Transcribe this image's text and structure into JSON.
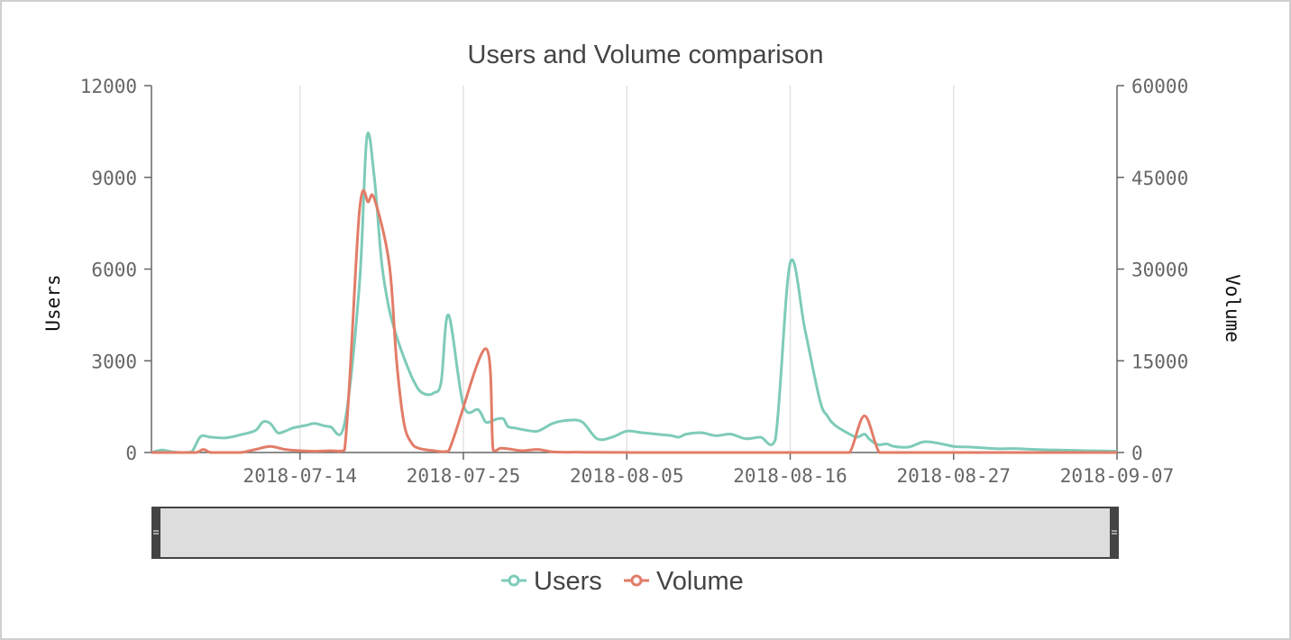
{
  "chart_data": {
    "type": "line",
    "title": "Users and Volume comparison",
    "ylabel": "Users",
    "y2label": "Volume",
    "ylim": [
      0,
      12000
    ],
    "y2lim": [
      0,
      60000
    ],
    "yticks": [
      "0",
      "3000",
      "6000",
      "9000",
      "12000"
    ],
    "y2ticks": [
      "0",
      "15000",
      "30000",
      "45000",
      "60000"
    ],
    "xticks": [
      "2018-07-14",
      "2018-07-25",
      "2018-08-05",
      "2018-08-16",
      "2018-08-27",
      "2018-09-07"
    ],
    "xlim_days": [
      0,
      65
    ],
    "xtick_days": [
      10,
      21,
      32,
      43,
      54,
      65
    ],
    "grid": "vertical",
    "series": [
      {
        "name": "Users",
        "axis": "left",
        "color": "#7ecbb9",
        "x": [
          0,
          0.7,
          1.3,
          2,
          2.7,
          3.3,
          4,
          5,
          6,
          7,
          7.5,
          8,
          8.5,
          9,
          9.5,
          10,
          10.5,
          11,
          12,
          13,
          14,
          14.5,
          15,
          15.5,
          16,
          16.5,
          17,
          17.5,
          18,
          18.5,
          19,
          19.5,
          20,
          21,
          22,
          22.5,
          23,
          23.3,
          23.7,
          24,
          24.5,
          25,
          26,
          27,
          28,
          29,
          30,
          31,
          32,
          33,
          34,
          35,
          35.5,
          36,
          37,
          38,
          39,
          40,
          41,
          42,
          43,
          44,
          45,
          45.5,
          46,
          47,
          47.5,
          48,
          48.3,
          48.7,
          49,
          49.5,
          50,
          51,
          52,
          53,
          54,
          55,
          56,
          57,
          58,
          59,
          60,
          61,
          62,
          63,
          64,
          65
        ],
        "values": [
          0,
          80,
          30,
          0,
          20,
          520,
          500,
          480,
          580,
          720,
          1000,
          950,
          650,
          700,
          800,
          850,
          900,
          950,
          850,
          950,
          5500,
          10300,
          9000,
          6200,
          4700,
          3800,
          3100,
          2500,
          2050,
          1900,
          1950,
          2300,
          4500,
          1550,
          1400,
          1000,
          1050,
          1100,
          1100,
          850,
          800,
          750,
          700,
          950,
          1050,
          1000,
          450,
          500,
          700,
          650,
          600,
          550,
          500,
          600,
          650,
          550,
          600,
          450,
          500,
          420,
          6200,
          4000,
          1700,
          1200,
          900,
          600,
          500,
          600,
          450,
          300,
          250,
          280,
          200,
          180,
          350,
          300,
          200,
          180,
          150,
          120,
          130,
          110,
          90,
          80,
          70,
          60,
          50,
          40
        ],
        "values_note": "trace follows the plotted curve"
      },
      {
        "name": "Volume",
        "axis": "right",
        "color": "#e27c68",
        "x": [
          0,
          1,
          2,
          3,
          3.5,
          4,
          5,
          6,
          7,
          8,
          9,
          10,
          11,
          12,
          13,
          14,
          14.6,
          15,
          16,
          16.5,
          17,
          17.5,
          18,
          19,
          20,
          22.5,
          23,
          23.5,
          24,
          25,
          26,
          27,
          28,
          29,
          30,
          31,
          32,
          33,
          34,
          35,
          36,
          37,
          38,
          39,
          40,
          41,
          42,
          43,
          44,
          45,
          46,
          47,
          48,
          49,
          50,
          51,
          52,
          53,
          54,
          55,
          56,
          57,
          58,
          59,
          60,
          61,
          62,
          63,
          64,
          65
        ],
        "values": [
          0,
          0,
          0,
          0,
          500,
          0,
          0,
          0,
          500,
          1000,
          500,
          300,
          200,
          300,
          400,
          39500,
          41000,
          41500,
          31000,
          15000,
          4800,
          1600,
          700,
          300,
          200,
          17000,
          400,
          700,
          600,
          300,
          500,
          100,
          50,
          50,
          30,
          20,
          10,
          0,
          0,
          0,
          0,
          0,
          0,
          0,
          0,
          0,
          0,
          0,
          0,
          0,
          0,
          0,
          6000,
          0,
          0,
          0,
          0,
          0,
          0,
          0,
          0,
          0,
          0,
          0,
          0,
          0,
          0,
          0,
          0,
          0
        ],
        "values_note": "trace follows the plotted curve"
      }
    ],
    "legend": [
      "Users",
      "Volume"
    ],
    "legend_position": "bottom-center",
    "range_selector": "full range selected"
  }
}
